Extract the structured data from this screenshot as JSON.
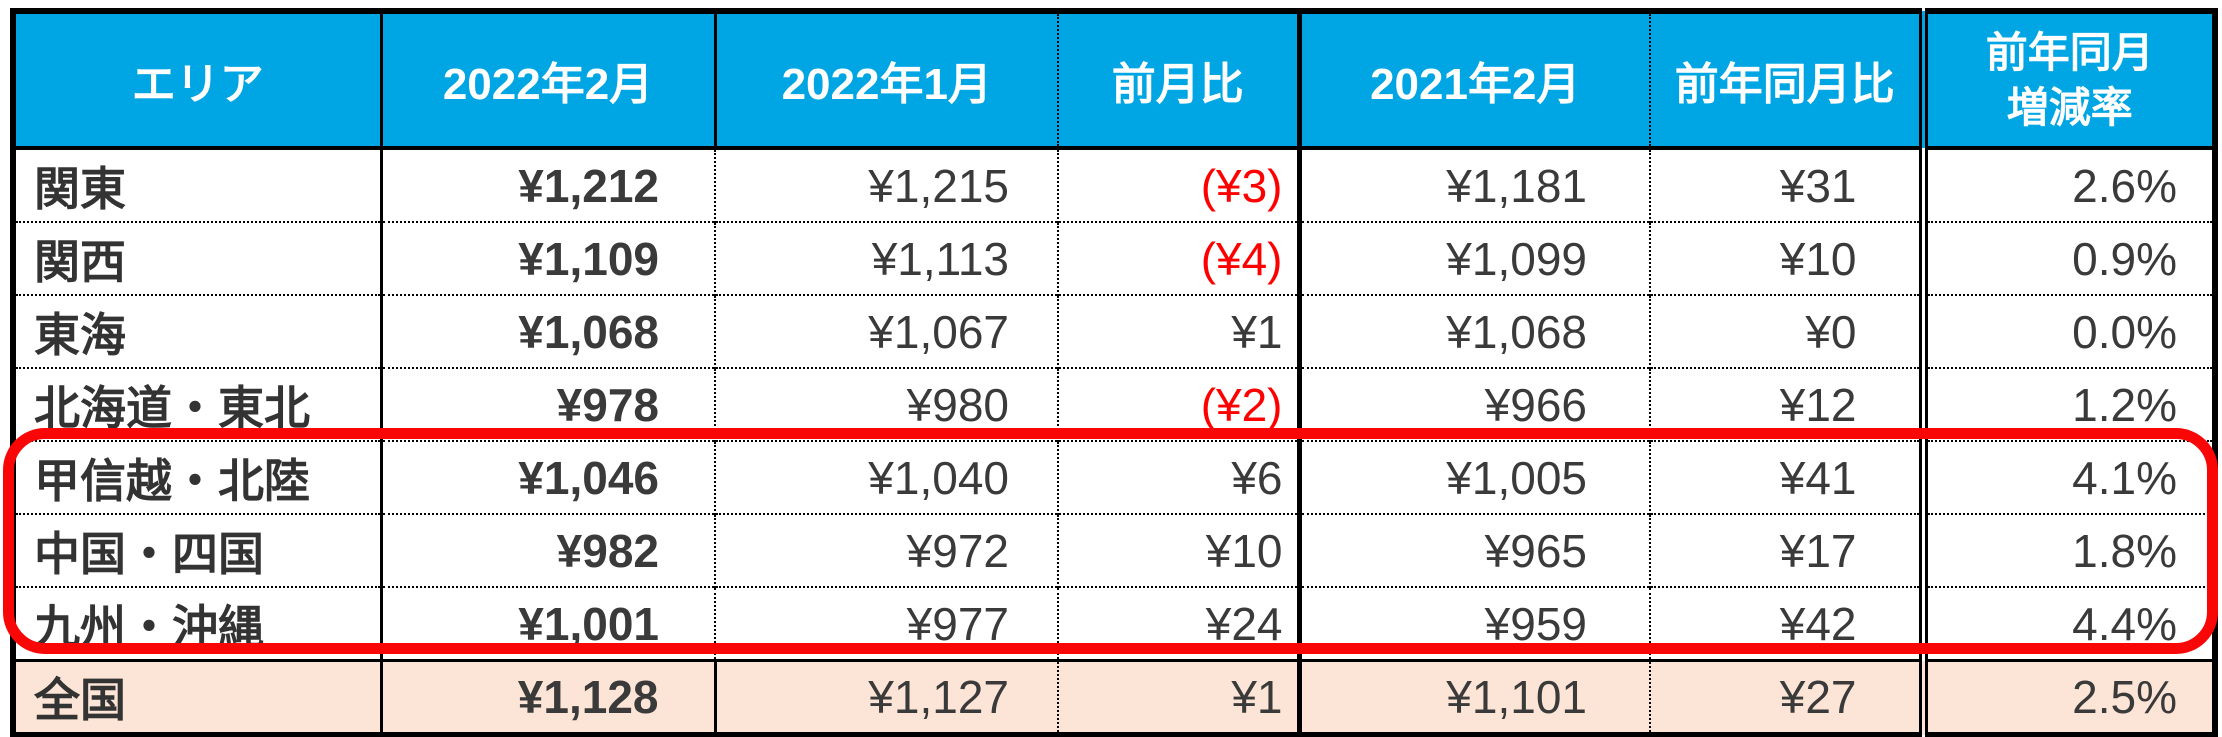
{
  "table": {
    "columns": [
      {
        "key": "area",
        "label": "エリア"
      },
      {
        "key": "feb2022",
        "label": "2022年2月"
      },
      {
        "key": "jan2022",
        "label": "2022年1月"
      },
      {
        "key": "mom",
        "label": "前月比"
      },
      {
        "key": "feb2021",
        "label": "2021年2月"
      },
      {
        "key": "yoy",
        "label": "前年同月比"
      },
      {
        "key": "yoy_rate",
        "label": "前年同月増減率",
        "label_line1": "前年同月",
        "label_line2": "増減率"
      }
    ],
    "rows": [
      {
        "area": "関東",
        "feb2022": "¥1,212",
        "jan2022": "¥1,215",
        "mom": "(¥3)",
        "feb2021": "¥1,181",
        "yoy": "¥31",
        "yoy_rate": "2.6%"
      },
      {
        "area": "関西",
        "feb2022": "¥1,109",
        "jan2022": "¥1,113",
        "mom": "(¥4)",
        "feb2021": "¥1,099",
        "yoy": "¥10",
        "yoy_rate": "0.9%"
      },
      {
        "area": "東海",
        "feb2022": "¥1,068",
        "jan2022": "¥1,067",
        "mom": "¥1",
        "feb2021": "¥1,068",
        "yoy": "¥0",
        "yoy_rate": "0.0%"
      },
      {
        "area": "北海道・東北",
        "feb2022": "¥978",
        "jan2022": "¥980",
        "mom": "(¥2)",
        "feb2021": "¥966",
        "yoy": "¥12",
        "yoy_rate": "1.2%"
      },
      {
        "area": "甲信越・北陸",
        "feb2022": "¥1,046",
        "jan2022": "¥1,040",
        "mom": "¥6",
        "feb2021": "¥1,005",
        "yoy": "¥41",
        "yoy_rate": "4.1%"
      },
      {
        "area": "中国・四国",
        "feb2022": "¥982",
        "jan2022": "¥972",
        "mom": "¥10",
        "feb2021": "¥965",
        "yoy": "¥17",
        "yoy_rate": "1.8%"
      },
      {
        "area": "九州・沖縄",
        "feb2022": "¥1,001",
        "jan2022": "¥977",
        "mom": "¥24",
        "feb2021": "¥959",
        "yoy": "¥42",
        "yoy_rate": "4.4%"
      }
    ],
    "total_row": {
      "area": "全国",
      "feb2022": "¥1,128",
      "jan2022": "¥1,127",
      "mom": "¥1",
      "feb2021": "¥1,101",
      "yoy": "¥27",
      "yoy_rate": "2.5%"
    }
  },
  "annotation": {
    "type": "red-rounded-rectangle",
    "highlighted_rows": [
      "甲信越・北陸",
      "中国・四国",
      "九州・沖縄"
    ]
  },
  "colors": {
    "header_bg": "#00A5E3",
    "header_text": "#FFFFFF",
    "total_row_bg": "#FCE4D6",
    "body_text": "#3A3A3A",
    "negative_text": "#FF0000",
    "border": "#000000",
    "annotation_red": "#F90606"
  },
  "chart_data": {
    "type": "table",
    "columns": [
      "エリア",
      "2022年2月",
      "2022年1月",
      "前月比",
      "2021年2月",
      "前年同月比",
      "前年同月増減率"
    ],
    "rows": [
      [
        "関東",
        "¥1,212",
        "¥1,215",
        "(¥3)",
        "¥1,181",
        "¥31",
        "2.6%"
      ],
      [
        "関西",
        "¥1,109",
        "¥1,113",
        "(¥4)",
        "¥1,099",
        "¥10",
        "0.9%"
      ],
      [
        "東海",
        "¥1,068",
        "¥1,067",
        "¥1",
        "¥1,068",
        "¥0",
        "0.0%"
      ],
      [
        "北海道・東北",
        "¥978",
        "¥980",
        "(¥2)",
        "¥966",
        "¥12",
        "1.2%"
      ],
      [
        "甲信越・北陸",
        "¥1,046",
        "¥1,040",
        "¥6",
        "¥1,005",
        "¥41",
        "4.1%"
      ],
      [
        "中国・四国",
        "¥982",
        "¥972",
        "¥10",
        "¥965",
        "¥17",
        "1.8%"
      ],
      [
        "九州・沖縄",
        "¥1,001",
        "¥977",
        "¥24",
        "¥959",
        "¥42",
        "4.4%"
      ],
      [
        "全国",
        "¥1,128",
        "¥1,127",
        "¥1",
        "¥1,101",
        "¥27",
        "2.5%"
      ]
    ],
    "notes": {
      "negative_values_shown_in_red_parentheses": [
        "(¥3)",
        "(¥4)",
        "(¥2)"
      ],
      "highlighted_rows_by_red_outline": [
        "甲信越・北陸",
        "中国・四国",
        "九州・沖縄"
      ],
      "total_row_shaded_peach": "全国"
    }
  }
}
